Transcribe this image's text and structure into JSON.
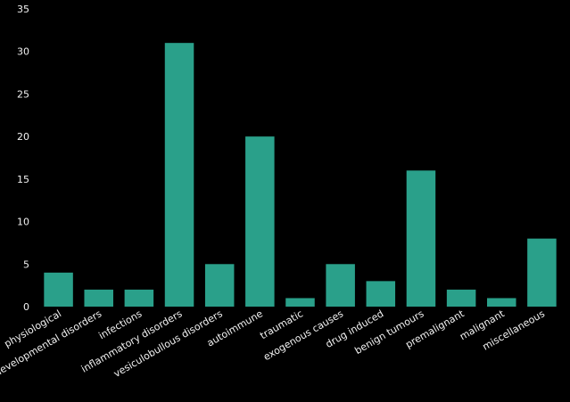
{
  "chart_data": {
    "type": "bar",
    "categories": [
      "physiological",
      "developmental disorders",
      "infections",
      "inflammatory disorders",
      "vesiculobullous disorders",
      "autoimmune",
      "traumatic",
      "exogenous causes",
      "drug induced",
      "benign tumours",
      "premalignant",
      "malignant",
      "miscellaneous"
    ],
    "values": [
      4,
      2,
      2,
      31,
      5,
      20,
      1,
      5,
      3,
      16,
      2,
      1,
      8
    ],
    "ylim": [
      0,
      35
    ],
    "yticks": [
      0,
      5,
      10,
      15,
      20,
      25,
      30,
      35
    ],
    "grid": false,
    "legend": "none",
    "colors": {
      "bar": "#2aa08a",
      "background": "#000000",
      "text": "#f2f2f2"
    }
  }
}
